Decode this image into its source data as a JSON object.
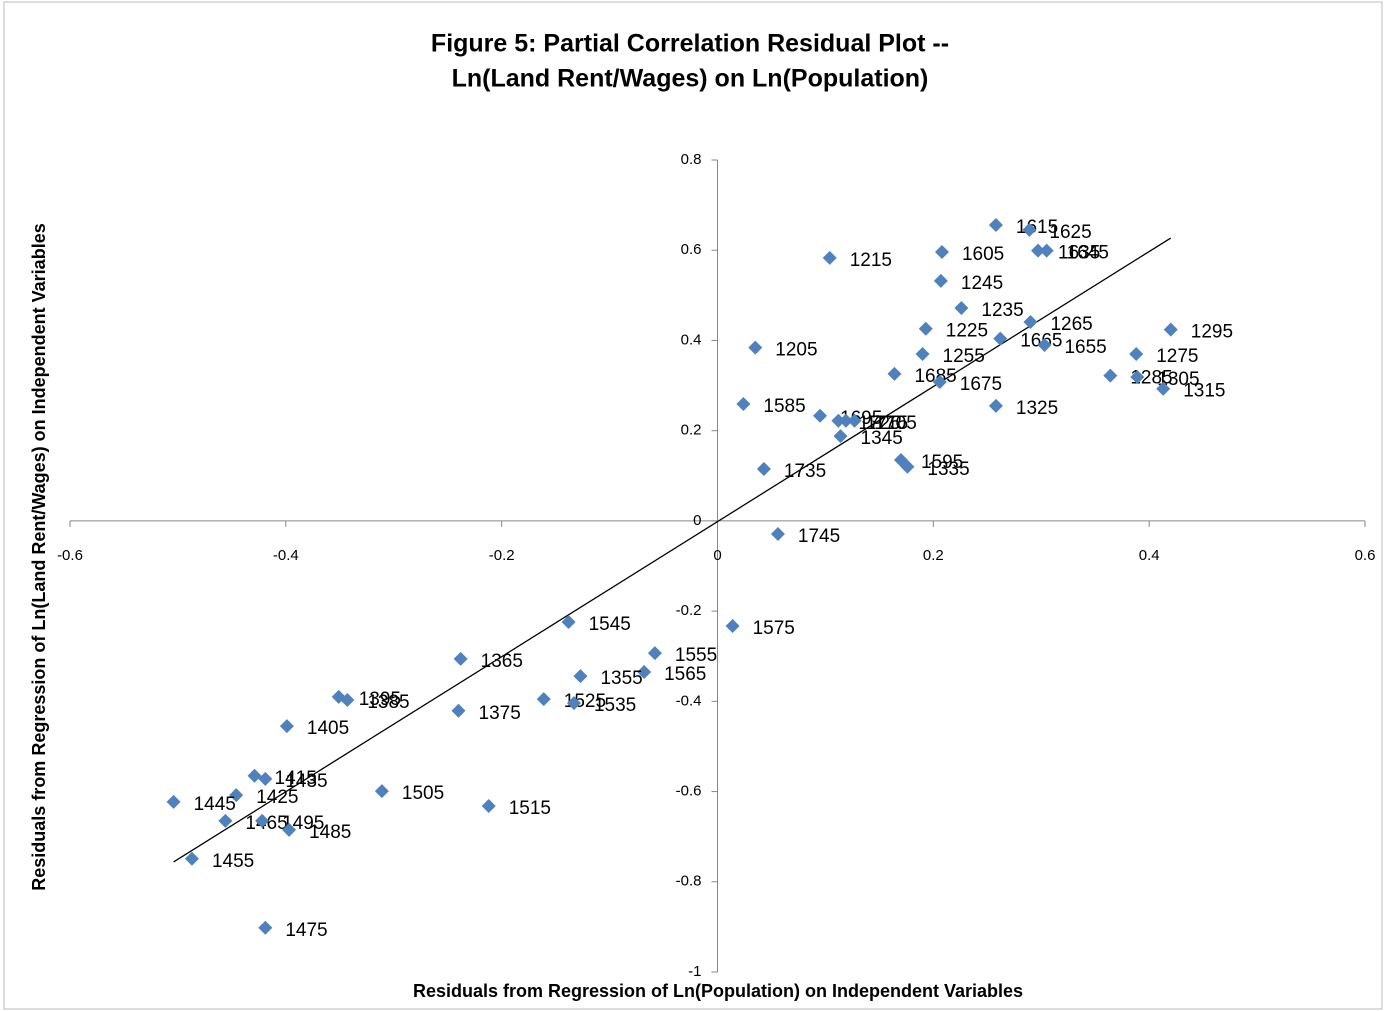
{
  "chart_data": {
    "type": "scatter",
    "title": [
      "Figure 5:  Partial Correlation Residual Plot --",
      "Ln(Land Rent/Wages) on Ln(Population)"
    ],
    "x_label": "Residuals from Regression of Ln(Population) on Independent Variables",
    "y_label": "Residuals from Regression of Ln(Land Rent/Wages) on Independent Variables",
    "color": "#4f81bd",
    "labels": [
      "1615",
      "1625",
      "1635",
      "1645",
      "1605",
      "1215",
      "1245",
      "1235",
      "1265",
      "1295",
      "1225",
      "1665",
      "1655",
      "1205",
      "1255",
      "1275",
      "1685",
      "1285",
      "1305",
      "1675",
      "1315",
      "1325",
      "1585",
      "1695",
      "1725",
      "1715",
      "1705",
      "1345",
      "1595",
      "1335",
      "1735",
      "1745",
      "1545",
      "1575",
      "1555",
      "1365",
      "1565",
      "1355",
      "1395",
      "1385",
      "1525",
      "1535",
      "1375",
      "1405",
      "1415",
      "1435",
      "1505",
      "1425",
      "1445",
      "1515",
      "1465",
      "1495",
      "1485",
      "1455",
      "1475"
    ],
    "x": [
      0.258,
      0.289,
      0.297,
      0.305,
      0.208,
      0.104,
      0.207,
      0.226,
      0.29,
      0.42,
      0.193,
      0.262,
      0.303,
      0.035,
      0.19,
      0.388,
      0.164,
      0.364,
      0.389,
      0.206,
      0.413,
      0.258,
      0.024,
      0.095,
      0.112,
      0.119,
      0.127,
      0.114,
      0.17,
      0.176,
      0.043,
      0.056,
      -0.138,
      0.014,
      -0.058,
      -0.238,
      -0.068,
      -0.127,
      -0.351,
      -0.343,
      -0.161,
      -0.133,
      -0.24,
      -0.399,
      -0.429,
      -0.419,
      -0.311,
      -0.446,
      -0.504,
      -0.212,
      -0.456,
      -0.422,
      -0.397,
      -0.487,
      -0.419
    ],
    "values": [
      0.656,
      0.645,
      0.599,
      0.599,
      0.596,
      0.583,
      0.532,
      0.472,
      0.441,
      0.424,
      0.426,
      0.404,
      0.39,
      0.384,
      0.37,
      0.37,
      0.326,
      0.322,
      0.319,
      0.308,
      0.293,
      0.255,
      0.259,
      0.233,
      0.222,
      0.222,
      0.222,
      0.188,
      0.135,
      0.12,
      0.115,
      -0.029,
      -0.224,
      -0.233,
      -0.293,
      -0.306,
      -0.335,
      -0.344,
      -0.39,
      -0.397,
      -0.395,
      -0.404,
      -0.421,
      -0.455,
      -0.565,
      -0.572,
      -0.599,
      -0.608,
      -0.623,
      -0.632,
      -0.665,
      -0.665,
      -0.685,
      -0.749,
      -0.902
    ],
    "trendline": {
      "x": [
        -0.504,
        0.42
      ],
      "values": [
        -0.756,
        0.627
      ]
    },
    "xlim": [
      -0.6,
      0.6
    ],
    "xticks": [
      -0.6,
      -0.4,
      -0.2,
      0,
      0.2,
      0.4,
      0.6
    ],
    "ylim": [
      -1,
      0.8
    ],
    "yticks": [
      -1,
      -0.8,
      -0.6,
      -0.4,
      -0.2,
      0,
      0.2,
      0.4,
      0.6,
      0.8
    ]
  }
}
